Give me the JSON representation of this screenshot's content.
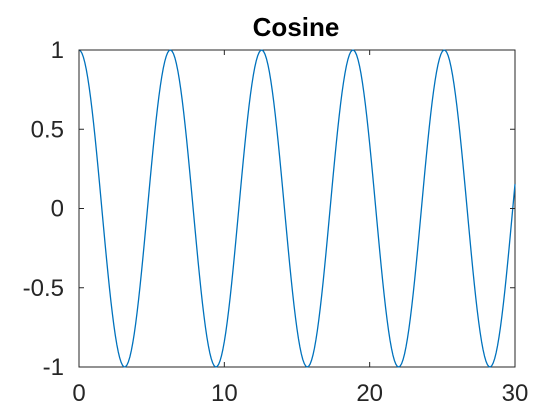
{
  "chart_data": {
    "type": "line",
    "title": "Cosine",
    "xlabel": "",
    "ylabel": "",
    "xlim": [
      0,
      30
    ],
    "ylim": [
      -1,
      1
    ],
    "grid": false,
    "legend": "none",
    "x_ticks": [
      0,
      10,
      20,
      30
    ],
    "x_tick_labels": [
      "0",
      "10",
      "20",
      "30"
    ],
    "y_ticks": [
      1,
      0.5,
      0,
      -0.5,
      -1
    ],
    "y_tick_labels": [
      "1",
      "0.5",
      "0",
      "-0.5",
      "-1"
    ],
    "series": [
      {
        "function": "cos(x)",
        "x_start": 0,
        "x_end": 30,
        "samples": 301,
        "color": "#0072BD"
      }
    ],
    "axis_color": "#262626",
    "box_color": "#262626"
  }
}
